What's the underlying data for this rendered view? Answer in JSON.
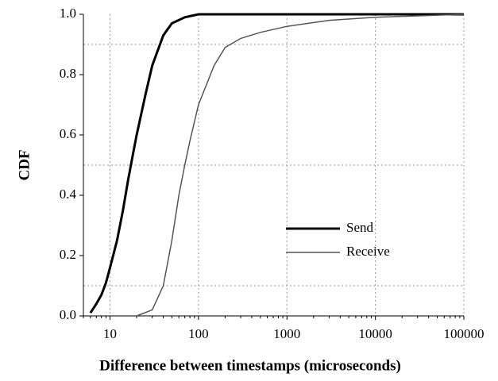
{
  "chart_data": {
    "type": "line",
    "x_label": "Difference between timestamps (microseconds)",
    "y_label": "CDF",
    "x_log": true,
    "xlim": [
      5,
      100000
    ],
    "ylim": [
      0,
      1
    ],
    "xticks": [
      10,
      100,
      1000,
      10000,
      100000
    ],
    "yticks": [
      {
        "value": 0,
        "label": "0.0"
      },
      {
        "value": 0.2,
        "label": "0.2"
      },
      {
        "value": 0.4,
        "label": "0.4"
      },
      {
        "value": 0.6,
        "label": "0.6"
      },
      {
        "value": 0.8,
        "label": "0.8"
      },
      {
        "value": 1,
        "label": "1.0"
      }
    ],
    "ygrid": [
      0.1,
      0.5,
      0.9
    ],
    "grid": true,
    "legend": "lower right",
    "series": [
      {
        "name": "Send",
        "color": "#000000",
        "width": 3,
        "x": [
          6,
          7,
          8,
          9,
          10,
          12,
          14,
          16,
          18,
          20,
          25,
          30,
          40,
          50,
          70,
          100,
          100000
        ],
        "values": [
          0.01,
          0.04,
          0.07,
          0.11,
          0.16,
          0.25,
          0.35,
          0.45,
          0.53,
          0.6,
          0.73,
          0.83,
          0.93,
          0.97,
          0.99,
          1.0,
          1.0
        ]
      },
      {
        "name": "Receive",
        "color": "#555555",
        "width": 1.5,
        "x": [
          20,
          30,
          40,
          50,
          60,
          70,
          80,
          100,
          150,
          200,
          300,
          500,
          1000,
          3000,
          10000,
          100000
        ],
        "values": [
          0,
          0.02,
          0.1,
          0.25,
          0.4,
          0.5,
          0.58,
          0.7,
          0.83,
          0.89,
          0.92,
          0.94,
          0.96,
          0.98,
          0.99,
          1.0
        ]
      }
    ]
  }
}
